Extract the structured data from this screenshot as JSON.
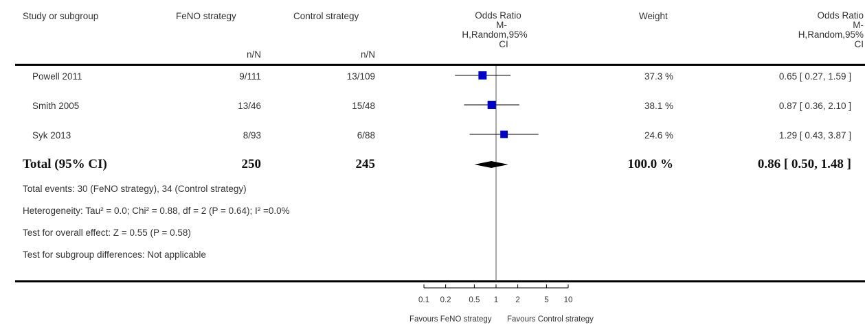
{
  "headers": {
    "study": "Study or subgroup",
    "feno": "FeNO strategy",
    "control": "Control strategy",
    "or_plot_l1": "Odds Ratio",
    "or_plot_l2": "M-",
    "or_plot_l3": "H,Random,95%",
    "or_plot_l4": "CI",
    "weight": "Weight",
    "or_l1": "Odds Ratio",
    "or_l2": "M-",
    "or_l3": "H,Random,95%",
    "or_l4": "CI",
    "nN_feno": "n/N",
    "nN_control": "n/N"
  },
  "total": {
    "label": "Total (95% CI)",
    "feno_total": "250",
    "control_total": "245",
    "weight": "100.0 %",
    "or_text": "0.86 [ 0.50, 1.48 ]"
  },
  "footer": {
    "events": "Total events: 30 (FeNO strategy), 34 (Control strategy)",
    "heterogeneity": "Heterogeneity: Tau² = 0.0; Chi² = 0.88, df = 2 (P = 0.64); I² =0.0%",
    "overall": "Test for overall effect: Z = 0.55 (P = 0.58)",
    "subgroup": "Test for subgroup differences: Not applicable"
  },
  "axis_labels": {
    "favours_left": "Favours FeNO strategy",
    "favours_right": "Favours Control strategy"
  },
  "chart_data": {
    "type": "forest",
    "scale": "log",
    "xlim": [
      0.1,
      10
    ],
    "ticks": [
      0.1,
      0.2,
      0.5,
      1,
      2,
      5,
      10
    ],
    "tick_labels": [
      "0.1",
      "0.2",
      "0.5",
      "1",
      "2",
      "5",
      "10"
    ],
    "studies": [
      {
        "name": "Powell 2011",
        "feno": "9/111",
        "control": "13/109",
        "weight": "37.3 %",
        "weight_value": 37.3,
        "or": 0.65,
        "lo": 0.27,
        "hi": 1.59,
        "or_text": "0.65 [ 0.27, 1.59 ]"
      },
      {
        "name": "Smith 2005",
        "feno": "13/46",
        "control": "15/48",
        "weight": "38.1 %",
        "weight_value": 38.1,
        "or": 0.87,
        "lo": 0.36,
        "hi": 2.1,
        "or_text": "0.87 [ 0.36, 2.10 ]"
      },
      {
        "name": "Syk 2013",
        "feno": "8/93",
        "control": "6/88",
        "weight": "24.6 %",
        "weight_value": 24.6,
        "or": 1.29,
        "lo": 0.43,
        "hi": 3.87,
        "or_text": "1.29 [ 0.43, 3.87 ]"
      }
    ],
    "pooled": {
      "or": 0.86,
      "lo": 0.5,
      "hi": 1.48
    },
    "colors": {
      "box": "#0000cc",
      "line": "#000000",
      "diamond": "#000000"
    }
  }
}
